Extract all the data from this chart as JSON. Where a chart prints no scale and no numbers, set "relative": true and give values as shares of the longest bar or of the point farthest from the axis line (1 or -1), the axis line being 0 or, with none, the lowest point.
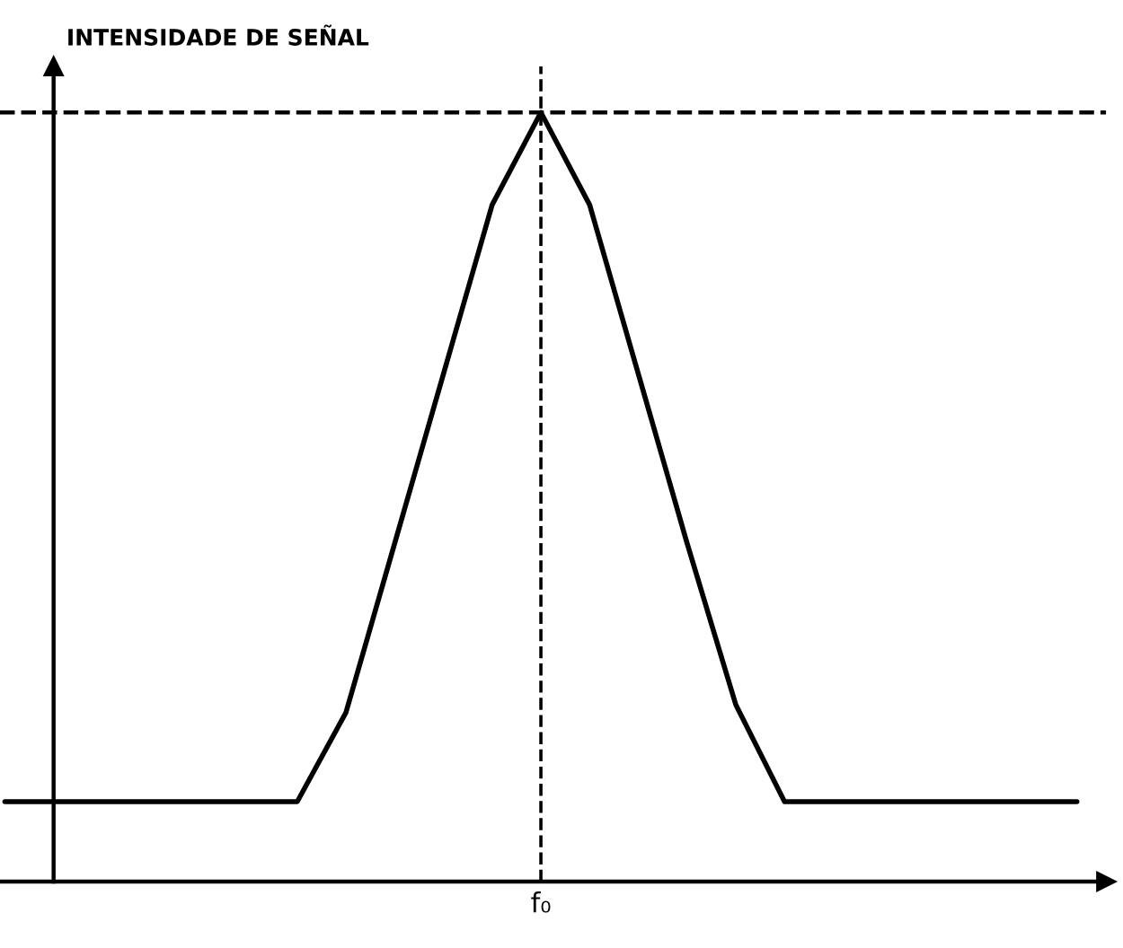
{
  "chart_data": {
    "type": "line",
    "relative": true,
    "ylabel": "INTENSIDADE DE SEÑAL",
    "categories": [
      null,
      null,
      null,
      null,
      null,
      null,
      null,
      null,
      null,
      null,
      null,
      null,
      null,
      null,
      null,
      null,
      null,
      null,
      null,
      null,
      null,
      null,
      null
    ],
    "series": [
      {
        "color": "#000000",
        "values": [
          0.104,
          0.104,
          0.104,
          0.104,
          0.104,
          0.104,
          0.104,
          0.22,
          0.44,
          0.66,
          0.88,
          1.0,
          0.88,
          0.66,
          0.44,
          0.23,
          0.104,
          0.104,
          0.104,
          0.104,
          0.104,
          0.104,
          0.104
        ]
      }
    ],
    "ref_lines": [
      {
        "axis": "y",
        "value": 1.0,
        "color": "#000000",
        "line_style": "dashed"
      }
    ],
    "annotations": [
      "f₀"
    ],
    "marker": "none",
    "line_style": "solid",
    "legend": false
  }
}
